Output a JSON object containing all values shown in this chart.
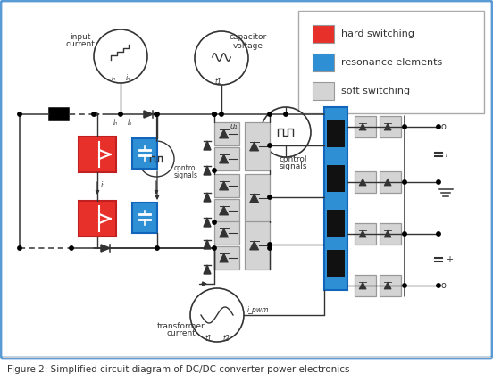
{
  "title": "Figure 2: Simplified circuit diagram of DC/DC converter power electronics",
  "bg_color": "#ffffff",
  "border_color": "#5b9bd5",
  "legend_items": [
    {
      "label": "hard switching",
      "color": "#e8302a"
    },
    {
      "label": "resonance elements",
      "color": "#2e8fd4"
    },
    {
      "label": "soft switching",
      "color": "#d4d4d4"
    }
  ],
  "red_color": "#e8302a",
  "blue_color": "#2e8fd4",
  "gray_color": "#d4d4d4",
  "line_color": "#333333",
  "black": "#000000",
  "text_color": "#333333",
  "caption_color": "#333333",
  "dashed_color": "#555555"
}
